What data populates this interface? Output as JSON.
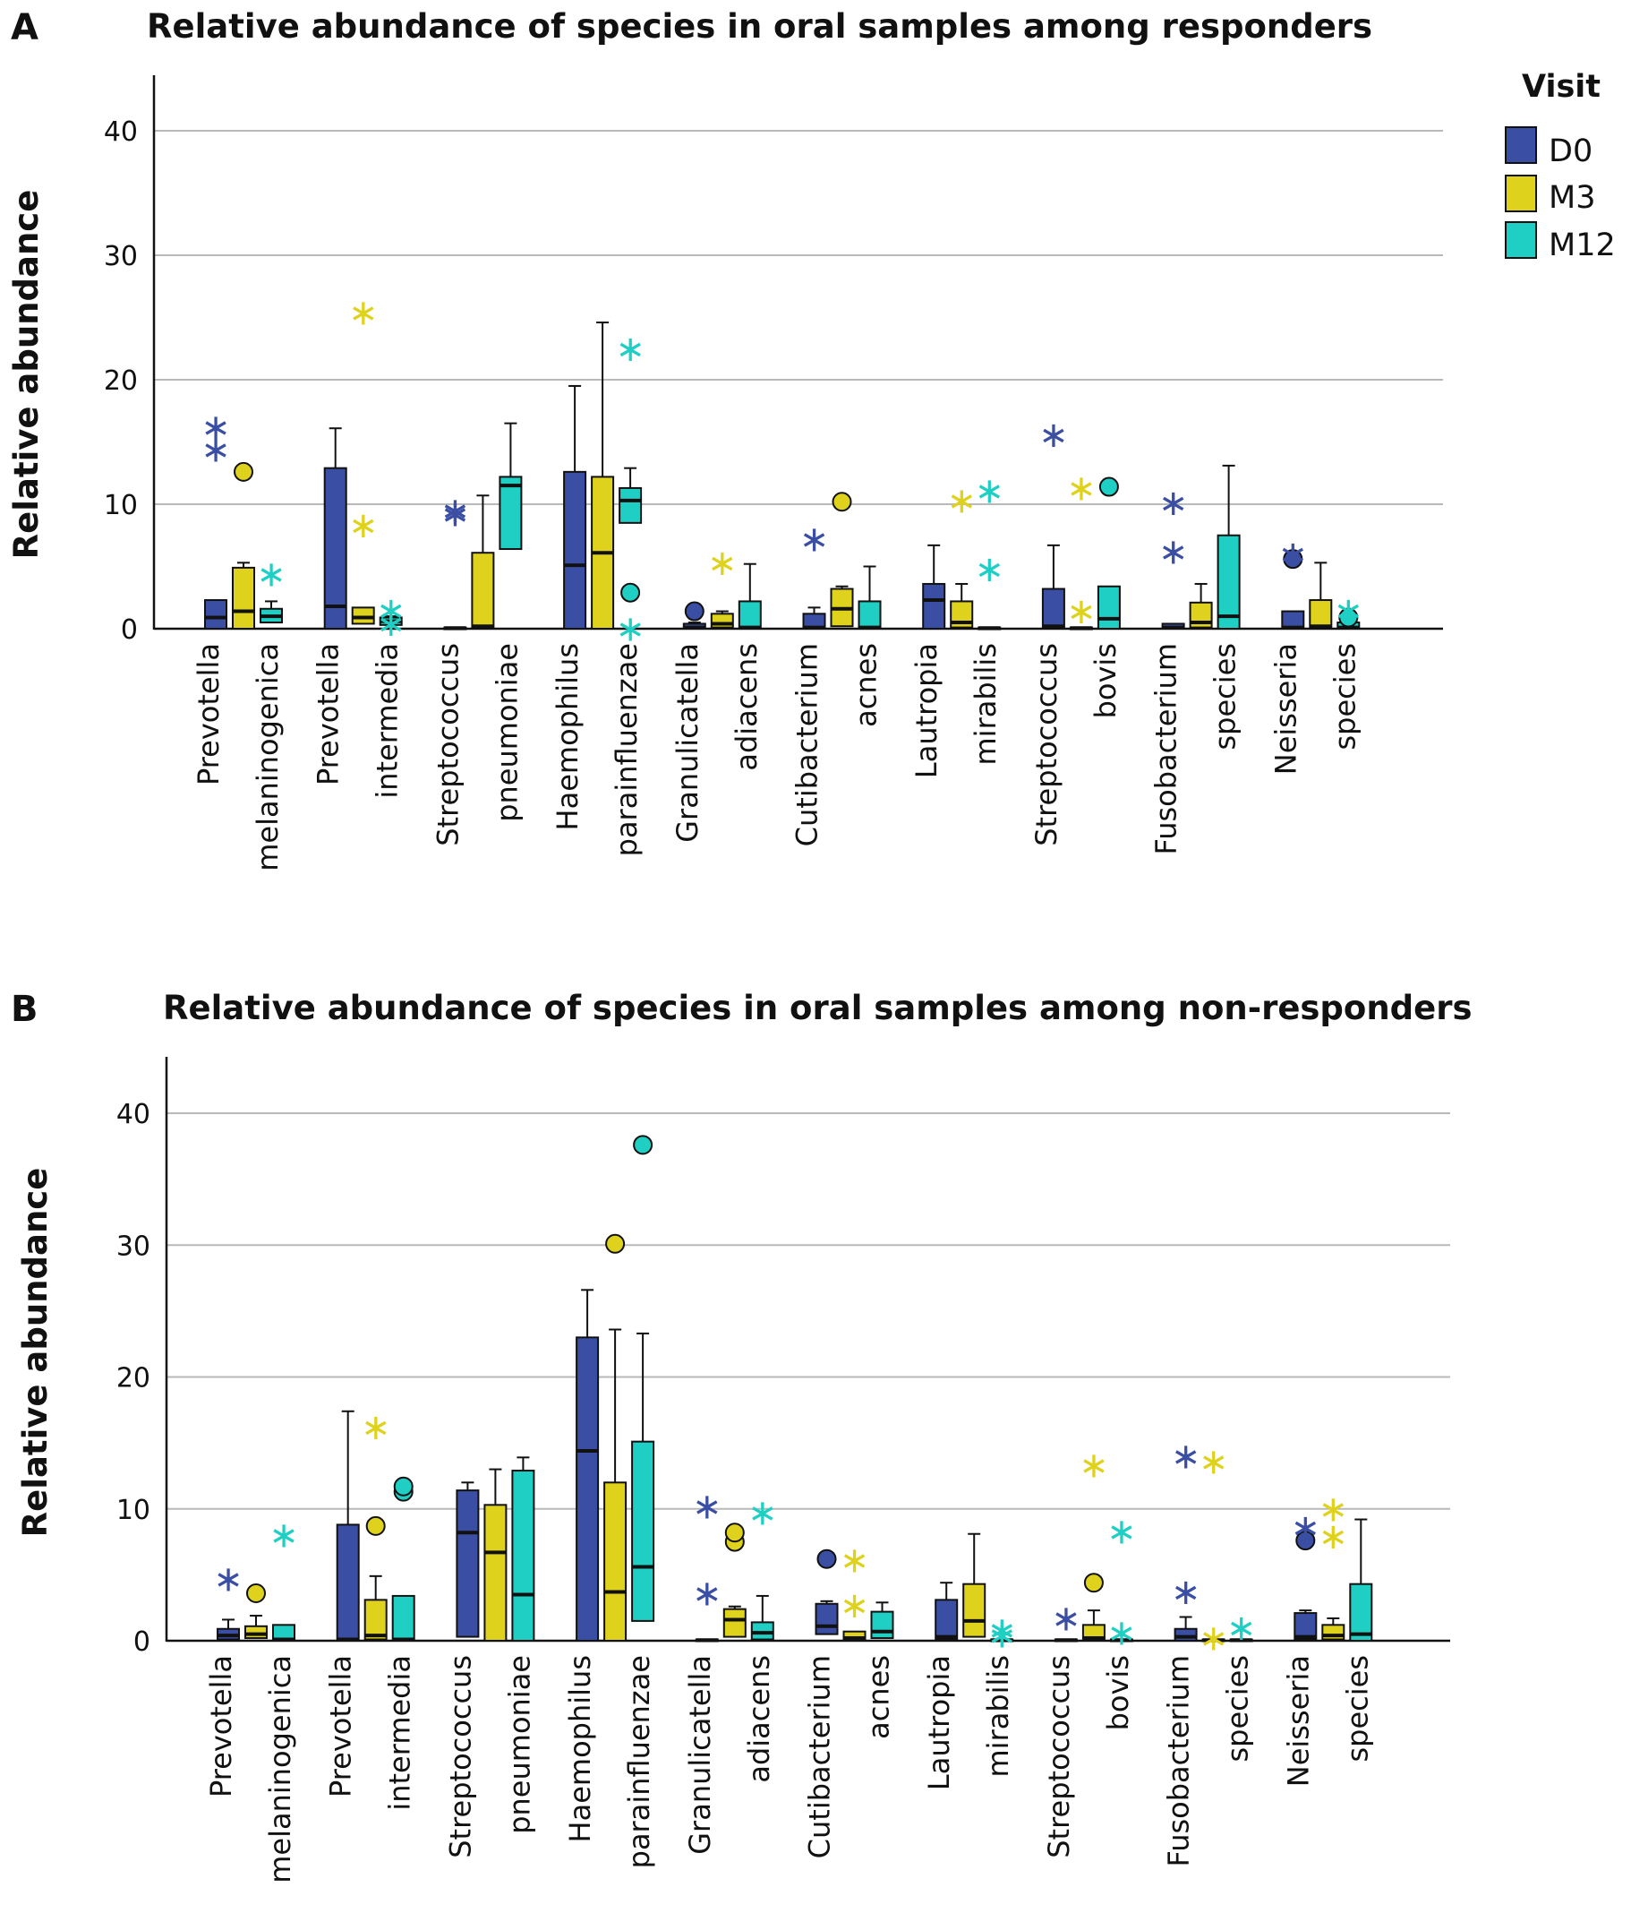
{
  "legend": {
    "title": "Visit",
    "items": [
      {
        "label": "D0",
        "color": "#3a4fa3"
      },
      {
        "label": "M3",
        "color": "#dfd21c"
      },
      {
        "label": "M12",
        "color": "#1fcfc4"
      }
    ]
  },
  "chart_data": [
    {
      "panel": "A",
      "type": "box",
      "title": "Relative abundance of species in oral samples among responders",
      "ylabel": "Relative abundance",
      "ylim": [
        0,
        45
      ],
      "yticks": [
        0,
        10,
        20,
        30,
        40
      ],
      "categories": [
        [
          "Prevotella",
          "melaninogenica"
        ],
        [
          "Prevotella",
          "intermedia"
        ],
        [
          "Streptococcus",
          "pneumoniae"
        ],
        [
          "Haemophilus",
          "parainfluenzae"
        ],
        [
          "Granulicatella",
          "adiacens"
        ],
        [
          "Cutibacterium",
          "acnes"
        ],
        [
          "Lautropia",
          "mirabilis"
        ],
        [
          "Streptococcus",
          "bovis"
        ],
        [
          "Fusobacterium",
          "species"
        ],
        [
          "Neisseria",
          "species"
        ]
      ],
      "boxes": [
        [
          {
            "wl": 0,
            "q1": 0,
            "med": 0.9,
            "q3": 2.3,
            "wh": 2.3,
            "out": [],
            "ext": [
              14.5,
              16.3
            ]
          },
          {
            "wl": 0,
            "q1": 0,
            "med": 1.4,
            "q3": 4.9,
            "wh": 5.3,
            "out": [
              12.6
            ],
            "ext": []
          },
          {
            "wl": 0,
            "q1": 0.5,
            "med": 1.0,
            "q3": 1.6,
            "wh": 2.2,
            "out": [],
            "ext": [
              4.5
            ]
          }
        ],
        [
          {
            "wl": 0,
            "q1": 0,
            "med": 1.8,
            "q3": 12.9,
            "wh": 16.1,
            "out": [],
            "ext": []
          },
          {
            "wl": 0,
            "q1": 0.4,
            "med": 0.9,
            "q3": 1.7,
            "wh": 1.7,
            "out": [],
            "ext": [
              8.4,
              25.5
            ]
          },
          {
            "wl": 0,
            "q1": 0.3,
            "med": 0.6,
            "q3": 0.9,
            "wh": 1.0,
            "out": [],
            "ext": [
              0.5,
              1.6
            ]
          }
        ],
        [
          {
            "wl": 0,
            "q1": 0,
            "med": 0.05,
            "q3": 0.1,
            "wh": 0.1,
            "out": [],
            "ext": [
              9.3,
              9.6
            ]
          },
          {
            "wl": 0,
            "q1": 0,
            "med": 0.2,
            "q3": 6.1,
            "wh": 10.7,
            "out": [],
            "ext": []
          },
          {
            "wl": 0,
            "q1": 6.4,
            "med": 11.5,
            "q3": 12.2,
            "wh": 16.5,
            "out": [],
            "ext": []
          }
        ],
        [
          {
            "wl": 0,
            "q1": 0,
            "med": 5.1,
            "q3": 12.6,
            "wh": 19.5,
            "out": [],
            "ext": []
          },
          {
            "wl": 0,
            "q1": 0,
            "med": 6.1,
            "q3": 12.2,
            "wh": 24.6,
            "out": [],
            "ext": []
          },
          {
            "wl": 0,
            "q1": 8.5,
            "med": 10.3,
            "q3": 11.3,
            "wh": 12.9,
            "out": [
              2.9
            ],
            "ext": [
              0.1,
              22.6
            ]
          }
        ],
        [
          {
            "wl": 0,
            "q1": 0,
            "med": 0.1,
            "q3": 0.4,
            "wh": 0.5,
            "out": [
              1.4
            ],
            "ext": []
          },
          {
            "wl": 0,
            "q1": 0.1,
            "med": 0.4,
            "q3": 1.2,
            "wh": 1.4,
            "out": [],
            "ext": [
              5.4
            ]
          },
          {
            "wl": 0,
            "q1": 0,
            "med": 0.1,
            "q3": 2.2,
            "wh": 5.2,
            "out": [],
            "ext": []
          }
        ],
        [
          {
            "wl": 0,
            "q1": 0,
            "med": 0.1,
            "q3": 1.2,
            "wh": 1.7,
            "out": [],
            "ext": [
              7.3
            ]
          },
          {
            "wl": 0,
            "q1": 0.2,
            "med": 1.6,
            "q3": 3.2,
            "wh": 3.4,
            "out": [
              10.2
            ],
            "ext": []
          },
          {
            "wl": 0,
            "q1": 0,
            "med": 0.1,
            "q3": 2.2,
            "wh": 5.0,
            "out": [],
            "ext": []
          }
        ],
        [
          {
            "wl": 0,
            "q1": 0,
            "med": 2.3,
            "q3": 3.6,
            "wh": 6.7,
            "out": [],
            "ext": []
          },
          {
            "wl": 0,
            "q1": 0.1,
            "med": 0.5,
            "q3": 2.2,
            "wh": 3.6,
            "out": [],
            "ext": [
              10.4
            ]
          },
          {
            "wl": 0,
            "q1": 0,
            "med": 0.05,
            "q3": 0.1,
            "wh": 0.1,
            "out": [],
            "ext": [
              4.9,
              11.2
            ]
          }
        ],
        [
          {
            "wl": 0,
            "q1": 0,
            "med": 0.2,
            "q3": 3.2,
            "wh": 6.7,
            "out": [],
            "ext": [
              15.7
            ]
          },
          {
            "wl": 0,
            "q1": 0,
            "med": 0.05,
            "q3": 0.1,
            "wh": 0.1,
            "out": [],
            "ext": [
              1.5,
              11.4
            ]
          },
          {
            "wl": 0,
            "q1": 0,
            "med": 0.8,
            "q3": 3.4,
            "wh": 3.4,
            "out": [
              11.4
            ],
            "ext": []
          }
        ],
        [
          {
            "wl": 0,
            "q1": 0,
            "med": 0.1,
            "q3": 0.4,
            "wh": 0.4,
            "out": [],
            "ext": [
              6.3,
              10.2
            ]
          },
          {
            "wl": 0,
            "q1": 0.1,
            "med": 0.5,
            "q3": 2.1,
            "wh": 3.6,
            "out": [],
            "ext": []
          },
          {
            "wl": 0,
            "q1": 0,
            "med": 1.0,
            "q3": 7.5,
            "wh": 13.1,
            "out": [],
            "ext": []
          }
        ],
        [
          {
            "wl": 0,
            "q1": 0,
            "med": 0.1,
            "q3": 1.4,
            "wh": 1.4,
            "out": [
              5.6
            ],
            "ext": [
              6.1
            ]
          },
          {
            "wl": 0,
            "q1": 0,
            "med": 0.2,
            "q3": 2.3,
            "wh": 5.3,
            "out": [],
            "ext": []
          },
          {
            "wl": 0,
            "q1": 0,
            "med": 0.1,
            "q3": 0.5,
            "wh": 0.5,
            "out": [
              0.9
            ],
            "ext": [
              1.6
            ]
          }
        ]
      ]
    },
    {
      "panel": "B",
      "type": "box",
      "title": "Relative abundance of species in oral samples among non-responders",
      "ylabel": "Relative abundance",
      "ylim": [
        0,
        44
      ],
      "yticks": [
        0,
        10,
        20,
        30,
        40
      ],
      "categories": [
        [
          "Prevotella",
          "melaninogenica"
        ],
        [
          "Prevotella",
          "intermedia"
        ],
        [
          "Streptococcus",
          "pneumoniae"
        ],
        [
          "Haemophilus",
          "parainfluenzae"
        ],
        [
          "Granulicatella",
          "adiacens"
        ],
        [
          "Cutibacterium",
          "acnes"
        ],
        [
          "Lautropia",
          "mirabilis"
        ],
        [
          "Streptococcus",
          "bovis"
        ],
        [
          "Fusobacterium",
          "species"
        ],
        [
          "Neisseria",
          "species"
        ]
      ],
      "boxes": [
        [
          {
            "wl": 0,
            "q1": 0.1,
            "med": 0.4,
            "q3": 0.9,
            "wh": 1.6,
            "out": [],
            "ext": [
              4.8
            ]
          },
          {
            "wl": 0,
            "q1": 0.2,
            "med": 0.5,
            "q3": 1.1,
            "wh": 1.9,
            "out": [
              3.6
            ],
            "ext": []
          },
          {
            "wl": 0,
            "q1": 0,
            "med": 0.1,
            "q3": 1.2,
            "wh": 1.2,
            "out": [],
            "ext": [
              8.1
            ]
          }
        ],
        [
          {
            "wl": 0,
            "q1": 0,
            "med": 0.1,
            "q3": 8.8,
            "wh": 17.4,
            "out": [],
            "ext": []
          },
          {
            "wl": 0,
            "q1": 0.1,
            "med": 0.4,
            "q3": 3.1,
            "wh": 4.9,
            "out": [
              8.7
            ],
            "ext": [
              16.3
            ]
          },
          {
            "wl": 0,
            "q1": 0,
            "med": 0.1,
            "q3": 3.4,
            "wh": 3.4,
            "out": [
              11.3,
              11.7
            ],
            "ext": []
          }
        ],
        [
          {
            "wl": 0,
            "q1": 0.3,
            "med": 8.2,
            "q3": 11.4,
            "wh": 12.0,
            "out": [],
            "ext": []
          },
          {
            "wl": 0,
            "q1": 0,
            "med": 6.7,
            "q3": 10.3,
            "wh": 13.0,
            "out": [],
            "ext": []
          },
          {
            "wl": 0,
            "q1": 0,
            "med": 3.5,
            "q3": 12.9,
            "wh": 13.9,
            "out": [],
            "ext": []
          }
        ],
        [
          {
            "wl": 0,
            "q1": 0,
            "med": 14.4,
            "q3": 23.0,
            "wh": 26.6,
            "out": [],
            "ext": []
          },
          {
            "wl": 0,
            "q1": 0,
            "med": 3.7,
            "q3": 12.0,
            "wh": 23.6,
            "out": [
              30.1
            ],
            "ext": []
          },
          {
            "wl": 0,
            "q1": 1.5,
            "med": 5.6,
            "q3": 15.1,
            "wh": 23.3,
            "out": [
              37.6
            ],
            "ext": []
          }
        ],
        [
          {
            "wl": 0,
            "q1": 0,
            "med": 0.05,
            "q3": 0.1,
            "wh": 0.1,
            "out": [],
            "ext": [
              3.7,
              10.3
            ]
          },
          {
            "wl": 0,
            "q1": 0.3,
            "med": 1.6,
            "q3": 2.4,
            "wh": 2.6,
            "out": [
              7.5,
              8.2
            ],
            "ext": []
          },
          {
            "wl": 0,
            "q1": 0.1,
            "med": 0.6,
            "q3": 1.4,
            "wh": 3.4,
            "out": [],
            "ext": [
              9.8
            ]
          }
        ],
        [
          {
            "wl": 0,
            "q1": 0.5,
            "med": 1.1,
            "q3": 2.8,
            "wh": 3.0,
            "out": [
              6.2
            ],
            "ext": []
          },
          {
            "wl": 0,
            "q1": 0,
            "med": 0.2,
            "q3": 0.7,
            "wh": 0.7,
            "out": [],
            "ext": [
              2.8,
              6.2
            ]
          },
          {
            "wl": 0,
            "q1": 0.2,
            "med": 0.7,
            "q3": 2.2,
            "wh": 2.9,
            "out": [],
            "ext": []
          }
        ],
        [
          {
            "wl": 0,
            "q1": 0.1,
            "med": 0.3,
            "q3": 3.1,
            "wh": 4.4,
            "out": [],
            "ext": []
          },
          {
            "wl": 0,
            "q1": 0.3,
            "med": 1.5,
            "q3": 4.3,
            "wh": 8.1,
            "out": [],
            "ext": []
          },
          {
            "wl": 0,
            "q1": 0,
            "med": 0.05,
            "q3": 0.1,
            "wh": 0.1,
            "out": [],
            "ext": [
              0.5,
              0.9
            ]
          }
        ],
        [
          {
            "wl": 0,
            "q1": 0,
            "med": 0.05,
            "q3": 0.1,
            "wh": 0.1,
            "out": [],
            "ext": [
              1.8
            ]
          },
          {
            "wl": 0,
            "q1": 0.1,
            "med": 0.2,
            "q3": 1.2,
            "wh": 2.3,
            "out": [
              4.4
            ],
            "ext": [
              13.4
            ]
          },
          {
            "wl": 0,
            "q1": 0,
            "med": 0.05,
            "q3": 0.1,
            "wh": 0.1,
            "out": [],
            "ext": [
              0.7,
              8.4
            ]
          }
        ],
        [
          {
            "wl": 0,
            "q1": 0,
            "med": 0.3,
            "q3": 0.9,
            "wh": 1.8,
            "out": [],
            "ext": [
              3.8,
              14.1
            ]
          },
          {
            "wl": 0,
            "q1": 0,
            "med": 0.05,
            "q3": 0.1,
            "wh": 0.1,
            "out": [],
            "ext": [
              0.3,
              13.7
            ]
          },
          {
            "wl": 0,
            "q1": 0,
            "med": 0.05,
            "q3": 0.1,
            "wh": 0.1,
            "out": [],
            "ext": [
              1.1
            ]
          }
        ],
        [
          {
            "wl": 0,
            "q1": 0.1,
            "med": 0.3,
            "q3": 2.1,
            "wh": 2.3,
            "out": [
              7.6
            ],
            "ext": [
              8.7
            ]
          },
          {
            "wl": 0,
            "q1": 0.1,
            "med": 0.4,
            "q3": 1.2,
            "wh": 1.7,
            "out": [],
            "ext": [
              8.0,
              10.1
            ]
          },
          {
            "wl": 0,
            "q1": 0,
            "med": 0.5,
            "q3": 4.3,
            "wh": 9.2,
            "out": [],
            "ext": []
          }
        ]
      ]
    }
  ]
}
